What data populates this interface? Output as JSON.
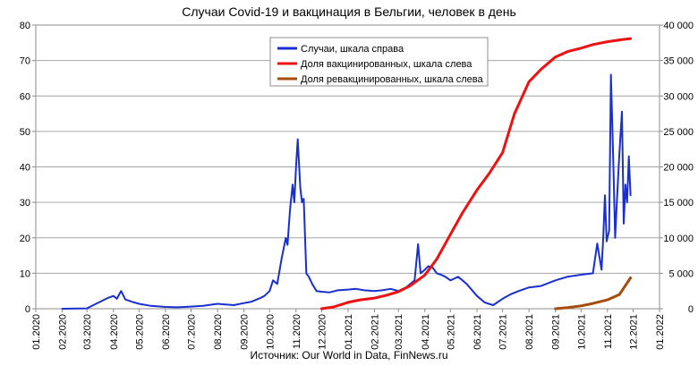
{
  "chart_data": {
    "type": "line",
    "title": "Случаи Covid-19 и вакцинация в Бельгии, человек в день",
    "source": "Источник: Our World in Data, FinNews.ru",
    "x_tick_labels": [
      "01.2020",
      "02.2020",
      "03.2020",
      "04.2020",
      "05.2020",
      "06.2020",
      "07.2020",
      "08.2020",
      "09.2020",
      "10.2020",
      "11.2020",
      "12.2020",
      "01.2021",
      "02.2021",
      "03.2021",
      "04.2021",
      "05.2021",
      "06.2021",
      "07.2021",
      "08.2021",
      "09.2021",
      "10.2021",
      "11.2021",
      "12.2021",
      "01.2022"
    ],
    "y_left": {
      "ylim": [
        0,
        80
      ],
      "ticks": [
        0,
        10,
        20,
        30,
        40,
        50,
        60,
        70,
        80
      ]
    },
    "y_right": {
      "ylim": [
        0,
        40000
      ],
      "ticks": [
        0,
        5000,
        10000,
        15000,
        20000,
        25000,
        30000,
        35000,
        40000
      ],
      "tick_labels": [
        "0",
        "5 000",
        "10 000",
        "15 000",
        "20 000",
        "25 000",
        "30 000",
        "35 000",
        "40 000"
      ]
    },
    "grid": true,
    "legend_position": "top-center",
    "series": [
      {
        "name": "Случаи, шкала справа",
        "axis": "right",
        "color": "#1a2fcf",
        "x": [
          "01.02.2020",
          "01.03.2020",
          "05.03.2020",
          "15.03.2020",
          "25.03.2020",
          "01.04.2020",
          "05.04.2020",
          "10.04.2020",
          "15.04.2020",
          "20.04.2020",
          "25.04.2020",
          "01.05.2020",
          "15.05.2020",
          "01.06.2020",
          "15.06.2020",
          "01.07.2020",
          "15.07.2020",
          "01.08.2020",
          "10.08.2020",
          "20.08.2020",
          "01.09.2020",
          "10.09.2020",
          "20.09.2020",
          "25.09.2020",
          "01.10.2020",
          "05.10.2020",
          "10.10.2020",
          "15.10.2020",
          "20.10.2020",
          "22.10.2020",
          "25.10.2020",
          "28.10.2020",
          "30.10.2020",
          "01.11.2020",
          "03.11.2020",
          "06.11.2020",
          "08.11.2020",
          "10.11.2020",
          "13.11.2020",
          "16.11.2020",
          "20.11.2020",
          "25.11.2020",
          "01.12.2020",
          "10.12.2020",
          "20.12.2020",
          "01.01.2021",
          "10.01.2021",
          "20.01.2021",
          "01.02.2021",
          "10.02.2021",
          "20.02.2021",
          "01.03.2021",
          "10.03.2021",
          "20.03.2021",
          "24.03.2021",
          "27.03.2021",
          "01.04.2021",
          "05.04.2021",
          "10.04.2021",
          "15.04.2021",
          "20.04.2021",
          "25.04.2021",
          "01.05.2021",
          "10.05.2021",
          "20.05.2021",
          "01.06.2021",
          "10.06.2021",
          "15.06.2021",
          "20.06.2021",
          "01.07.2021",
          "10.07.2021",
          "20.07.2021",
          "01.08.2021",
          "15.08.2021",
          "01.09.2021",
          "15.09.2021",
          "01.10.2021",
          "15.10.2021",
          "20.10.2021",
          "25.10.2021",
          "27.10.2021",
          "29.10.2021",
          "31.10.2021",
          "03.11.2021",
          "05.11.2021",
          "08.11.2021",
          "10.11.2021",
          "12.11.2021",
          "15.11.2021",
          "18.11.2021",
          "20.11.2021",
          "22.11.2021",
          "24.11.2021",
          "26.11.2021",
          "28.11.2021"
        ],
        "values": [
          0,
          50,
          300,
          900,
          1500,
          1800,
          1400,
          2500,
          1300,
          1100,
          900,
          700,
          400,
          250,
          200,
          300,
          400,
          700,
          600,
          500,
          800,
          1000,
          1500,
          1800,
          2500,
          4000,
          3500,
          7000,
          10000,
          9000,
          14000,
          17500,
          15000,
          20000,
          23900,
          17000,
          15000,
          15500,
          5000,
          4500,
          3500,
          2500,
          2400,
          2300,
          2600,
          2700,
          2800,
          2600,
          2500,
          2600,
          2800,
          2500,
          3000,
          4000,
          9100,
          5000,
          5500,
          6000,
          5800,
          5000,
          4800,
          4500,
          4000,
          4500,
          3500,
          1800,
          900,
          700,
          500,
          1400,
          2000,
          2500,
          3000,
          3200,
          4000,
          4500,
          4800,
          5000,
          9200,
          5500,
          10000,
          16000,
          9500,
          11000,
          33000,
          20000,
          10000,
          15000,
          22000,
          27800,
          12000,
          17500,
          15000,
          21500,
          16000
        ]
      },
      {
        "name": "Доля вакцинированных, шкала слева",
        "axis": "left",
        "color": "#ee1111",
        "x": [
          "01.12.2020",
          "15.12.2020",
          "01.01.2021",
          "15.01.2021",
          "01.02.2021",
          "15.02.2021",
          "01.03.2021",
          "15.03.2021",
          "01.04.2021",
          "15.04.2021",
          "01.05.2021",
          "15.05.2021",
          "01.06.2021",
          "15.06.2021",
          "01.07.2021",
          "15.07.2021",
          "01.08.2021",
          "15.08.2021",
          "01.09.2021",
          "15.09.2021",
          "01.10.2021",
          "15.10.2021",
          "01.11.2021",
          "15.11.2021",
          "28.11.2021"
        ],
        "values": [
          0,
          0.5,
          1.8,
          2.5,
          3.0,
          3.8,
          4.8,
          6.5,
          9.5,
          14,
          21,
          27,
          33.5,
          38,
          44,
          55,
          64,
          67.5,
          71,
          72.5,
          73.5,
          74.5,
          75.3,
          75.8,
          76.2
        ]
      },
      {
        "name": "Доля ревакцинированных, шкала слева",
        "axis": "left",
        "color": "#a64b0c",
        "x": [
          "01.09.2021",
          "15.09.2021",
          "01.10.2021",
          "15.10.2021",
          "01.11.2021",
          "15.11.2021",
          "28.11.2021"
        ],
        "values": [
          0,
          0.3,
          0.8,
          1.5,
          2.5,
          4.0,
          8.7
        ]
      }
    ]
  }
}
